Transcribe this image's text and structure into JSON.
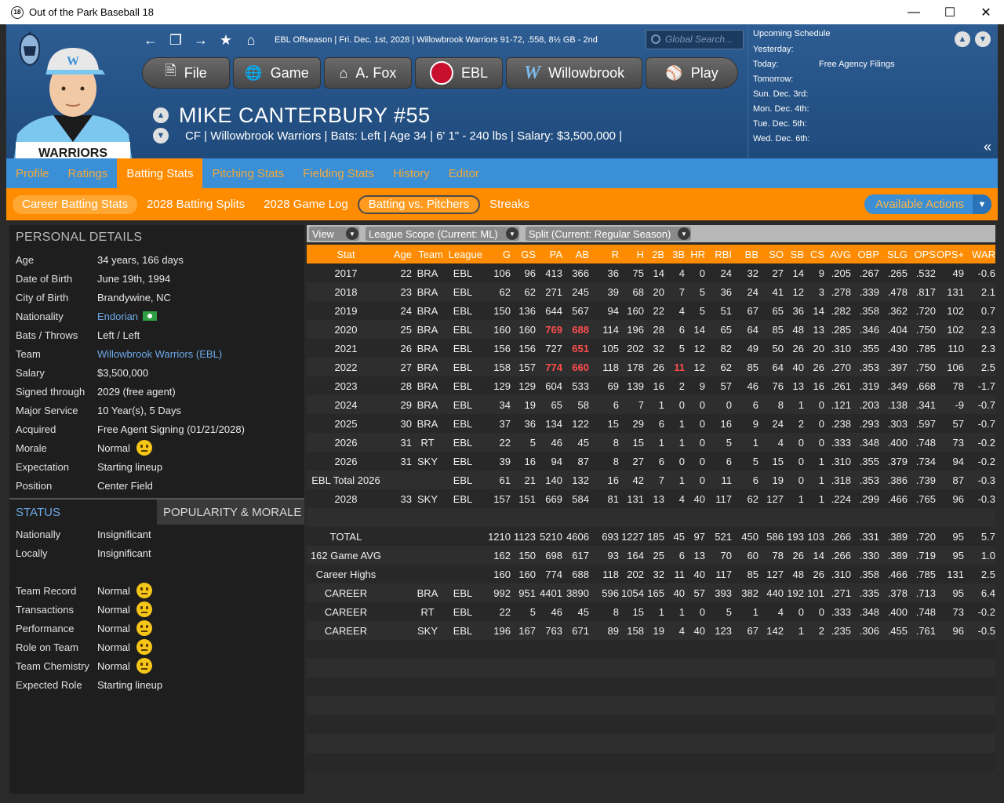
{
  "window": {
    "title": "Out of the Park Baseball 18",
    "app_icon": "18"
  },
  "nav": {
    "info": "EBL Offseason  |  Fri. Dec. 1st, 2028  |  Willowbrook Warriors  91-72, .558, 8½ GB - 2nd",
    "search_placeholder": "Global Search..."
  },
  "menu": [
    {
      "label": "File",
      "icon": "file-icon"
    },
    {
      "label": "Game",
      "icon": "globe-icon"
    },
    {
      "label": "A. Fox",
      "icon": "home-icon"
    },
    {
      "label": "EBL",
      "icon": "league-logo-icon"
    },
    {
      "label": "Willowbrook",
      "icon": "team-logo-icon"
    },
    {
      "label": "Play",
      "icon": "baseball-icon"
    }
  ],
  "player": {
    "name": "MIKE CANTERBURY  #55",
    "info": "CF | Willowbrook Warriors  |  Bats: Left  |  Age 34  |  6' 1\" - 240 lbs  |  Salary: $3,500,000  |",
    "jersey_text": "WARRIORS"
  },
  "schedule": {
    "title": "Upcoming Schedule",
    "rows": [
      {
        "day": "Yesterday:",
        "event": ""
      },
      {
        "day": "Today:",
        "event": "Free Agency Filings"
      },
      {
        "day": "Tomorrow:",
        "event": ""
      },
      {
        "day": "Sun. Dec. 3rd:",
        "event": ""
      },
      {
        "day": "Mon. Dec. 4th:",
        "event": ""
      },
      {
        "day": "Tue. Dec. 5th:",
        "event": ""
      },
      {
        "day": "Wed. Dec. 6th:",
        "event": ""
      }
    ]
  },
  "tabs": [
    "Profile",
    "Ratings",
    "Batting Stats",
    "Pitching Stats",
    "Fielding Stats",
    "History",
    "Editor"
  ],
  "subtabs": [
    "Career Batting Stats",
    "2028 Batting Splits",
    "2028 Game Log",
    "Batting vs. Pitchers",
    "Streaks"
  ],
  "available_actions": "Available Actions",
  "personal": {
    "heading": "PERSONAL DETAILS",
    "rows": [
      {
        "k": "Age",
        "v": "34 years, 166 days"
      },
      {
        "k": "Date of Birth",
        "v": "June 19th, 1994"
      },
      {
        "k": "City of Birth",
        "v": "Brandywine, NC"
      },
      {
        "k": "Nationality",
        "v": "Endorian"
      },
      {
        "k": "Bats / Throws",
        "v": "Left / Left"
      },
      {
        "k": "Team",
        "v": "Willowbrook Warriors (EBL)"
      },
      {
        "k": "Salary",
        "v": "$3,500,000"
      },
      {
        "k": "Signed through",
        "v": "2029 (free agent)"
      },
      {
        "k": "Major Service",
        "v": "10 Year(s), 5 Days"
      },
      {
        "k": "Acquired",
        "v": "Free Agent Signing (01/21/2028)"
      },
      {
        "k": "Morale",
        "v": "Normal"
      },
      {
        "k": "Expectation",
        "v": "Starting lineup"
      },
      {
        "k": "Position",
        "v": "Center Field"
      }
    ]
  },
  "status": {
    "tab_status": "STATUS",
    "tab_popularity": "POPULARITY & MORALE",
    "rows1": [
      {
        "k": "Nationally",
        "v": "Insignificant"
      },
      {
        "k": "Locally",
        "v": "Insignificant"
      }
    ],
    "rows2": [
      {
        "k": "Team Record",
        "v": "Normal"
      },
      {
        "k": "Transactions",
        "v": "Normal"
      },
      {
        "k": "Performance",
        "v": "Normal"
      },
      {
        "k": "Role on Team",
        "v": "Normal"
      },
      {
        "k": "Team Chemistry",
        "v": "Normal"
      },
      {
        "k": "Expected Role",
        "v": "Starting lineup"
      }
    ]
  },
  "filters": [
    "View",
    "League Scope  (Current: ML)",
    "Split  (Current: Regular Season)"
  ],
  "stats": {
    "columns": [
      "Stat",
      "Age",
      "Team",
      "League",
      "G",
      "GS",
      "PA",
      "AB",
      "R",
      "H",
      "2B",
      "3B",
      "HR",
      "RBI",
      "BB",
      "SO",
      "SB",
      "CS",
      "AVG",
      "OBP",
      "SLG",
      "OPS",
      "OPS+",
      "WAR"
    ],
    "rows": [
      [
        "2017",
        "22",
        "BRA",
        "EBL",
        "106",
        "96",
        "413",
        "366",
        "36",
        "75",
        "14",
        "4",
        "0",
        "24",
        "32",
        "27",
        "14",
        "9",
        ".205",
        ".267",
        ".265",
        ".532",
        "49",
        "-0.6"
      ],
      [
        "2018",
        "23",
        "BRA",
        "EBL",
        "62",
        "62",
        "271",
        "245",
        "39",
        "68",
        "20",
        "7",
        "5",
        "36",
        "24",
        "41",
        "12",
        "3",
        ".278",
        ".339",
        ".478",
        ".817",
        "131",
        "2.1"
      ],
      [
        "2019",
        "24",
        "BRA",
        "EBL",
        "150",
        "136",
        "644",
        "567",
        "94",
        "160",
        "22",
        "4",
        "5",
        "51",
        "67",
        "65",
        "36",
        "14",
        ".282",
        ".358",
        ".362",
        ".720",
        "102",
        "0.7"
      ],
      [
        "2020",
        "25",
        "BRA",
        "EBL",
        "160",
        "160",
        "769",
        "688",
        "114",
        "196",
        "28",
        "6",
        "14",
        "65",
        "64",
        "85",
        "48",
        "13",
        ".285",
        ".346",
        ".404",
        ".750",
        "102",
        "2.3"
      ],
      [
        "2021",
        "26",
        "BRA",
        "EBL",
        "156",
        "156",
        "727",
        "651",
        "105",
        "202",
        "32",
        "5",
        "12",
        "82",
        "49",
        "50",
        "26",
        "20",
        ".310",
        ".355",
        ".430",
        ".785",
        "110",
        "2.3"
      ],
      [
        "2022",
        "27",
        "BRA",
        "EBL",
        "158",
        "157",
        "774",
        "660",
        "118",
        "178",
        "26",
        "11",
        "12",
        "62",
        "85",
        "64",
        "40",
        "26",
        ".270",
        ".353",
        ".397",
        ".750",
        "106",
        "2.5"
      ],
      [
        "2023",
        "28",
        "BRA",
        "EBL",
        "129",
        "129",
        "604",
        "533",
        "69",
        "139",
        "16",
        "2",
        "9",
        "57",
        "46",
        "76",
        "13",
        "16",
        ".261",
        ".319",
        ".349",
        ".668",
        "78",
        "-1.7"
      ],
      [
        "2024",
        "29",
        "BRA",
        "EBL",
        "34",
        "19",
        "65",
        "58",
        "6",
        "7",
        "1",
        "0",
        "0",
        "0",
        "6",
        "8",
        "1",
        "0",
        ".121",
        ".203",
        ".138",
        ".341",
        "-9",
        "-0.7"
      ],
      [
        "2025",
        "30",
        "BRA",
        "EBL",
        "37",
        "36",
        "134",
        "122",
        "15",
        "29",
        "6",
        "1",
        "0",
        "16",
        "9",
        "24",
        "2",
        "0",
        ".238",
        ".293",
        ".303",
        ".597",
        "57",
        "-0.7"
      ],
      [
        "2026",
        "31",
        "RT",
        "EBL",
        "22",
        "5",
        "46",
        "45",
        "8",
        "15",
        "1",
        "1",
        "0",
        "5",
        "1",
        "4",
        "0",
        "0",
        ".333",
        ".348",
        ".400",
        ".748",
        "73",
        "-0.2"
      ],
      [
        "2026",
        "31",
        "SKY",
        "EBL",
        "39",
        "16",
        "94",
        "87",
        "8",
        "27",
        "6",
        "0",
        "0",
        "6",
        "5",
        "15",
        "0",
        "1",
        ".310",
        ".355",
        ".379",
        ".734",
        "94",
        "-0.2"
      ],
      [
        "EBL Total 2026",
        "",
        "",
        "EBL",
        "61",
        "21",
        "140",
        "132",
        "16",
        "42",
        "7",
        "1",
        "0",
        "11",
        "6",
        "19",
        "0",
        "1",
        ".318",
        ".353",
        ".386",
        ".739",
        "87",
        "-0.3"
      ],
      [
        "2028",
        "33",
        "SKY",
        "EBL",
        "157",
        "151",
        "669",
        "584",
        "81",
        "131",
        "13",
        "4",
        "40",
        "117",
        "62",
        "127",
        "1",
        "1",
        ".224",
        ".299",
        ".466",
        ".765",
        "96",
        "-0.3"
      ],
      [
        "",
        "",
        "",
        "",
        "",
        "",
        "",
        "",
        "",
        "",
        "",
        "",
        "",
        "",
        "",
        "",
        "",
        "",
        "",
        "",
        "",
        "",
        "",
        ""
      ],
      [
        "TOTAL",
        "",
        "",
        "",
        "1210",
        "1123",
        "5210",
        "4606",
        "693",
        "1227",
        "185",
        "45",
        "97",
        "521",
        "450",
        "586",
        "193",
        "103",
        ".266",
        ".331",
        ".389",
        ".720",
        "95",
        "5.7"
      ],
      [
        "162 Game AVG",
        "",
        "",
        "",
        "162",
        "150",
        "698",
        "617",
        "93",
        "164",
        "25",
        "6",
        "13",
        "70",
        "60",
        "78",
        "26",
        "14",
        ".266",
        ".330",
        ".389",
        ".719",
        "95",
        "1.0"
      ],
      [
        "Career Highs",
        "",
        "",
        "",
        "160",
        "160",
        "774",
        "688",
        "118",
        "202",
        "32",
        "11",
        "40",
        "117",
        "85",
        "127",
        "48",
        "26",
        ".310",
        ".358",
        ".466",
        ".785",
        "131",
        "2.5"
      ],
      [
        "CAREER",
        "",
        "BRA",
        "EBL",
        "992",
        "951",
        "4401",
        "3890",
        "596",
        "1054",
        "165",
        "40",
        "57",
        "393",
        "382",
        "440",
        "192",
        "101",
        ".271",
        ".335",
        ".378",
        ".713",
        "95",
        "6.4"
      ],
      [
        "CAREER",
        "",
        "RT",
        "EBL",
        "22",
        "5",
        "46",
        "45",
        "8",
        "15",
        "1",
        "1",
        "0",
        "5",
        "1",
        "4",
        "0",
        "0",
        ".333",
        ".348",
        ".400",
        ".748",
        "73",
        "-0.2"
      ],
      [
        "CAREER",
        "",
        "SKY",
        "EBL",
        "196",
        "167",
        "763",
        "671",
        "89",
        "158",
        "19",
        "4",
        "40",
        "123",
        "67",
        "142",
        "1",
        "2",
        ".235",
        ".306",
        ".455",
        ".761",
        "96",
        "-0.5"
      ]
    ],
    "highlights": [
      [
        3,
        6
      ],
      [
        3,
        7
      ],
      [
        4,
        7
      ],
      [
        5,
        6
      ],
      [
        5,
        7
      ],
      [
        5,
        11
      ]
    ]
  },
  "colors": {
    "accent_orange": "#ff8c00",
    "header_blue": "#2d5d93",
    "tab_blue": "#3b8fd6",
    "highlight_red": "#ff4d4d"
  }
}
